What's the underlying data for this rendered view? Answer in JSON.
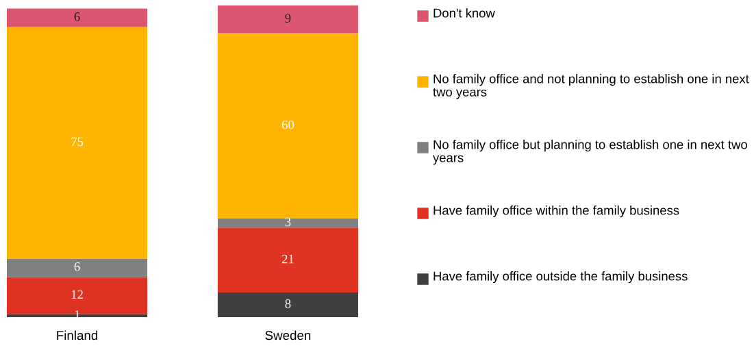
{
  "chart_data": {
    "type": "bar",
    "stacked": true,
    "data_labels": true,
    "legend": "right",
    "categories": [
      "Finland",
      "Sweden"
    ],
    "series": [
      {
        "name": "Have family office outside the family business",
        "color": "#404040",
        "values": [
          1,
          8
        ]
      },
      {
        "name": "Have family office within the family business",
        "color": "#e03222",
        "values": [
          12,
          21
        ]
      },
      {
        "name": "No family office but planning to establish one in next two years",
        "color": "#808080",
        "values": [
          6,
          3
        ]
      },
      {
        "name": "No family office and not planning to establish one in next two years",
        "color": "#ffb400",
        "values": [
          75,
          60
        ]
      },
      {
        "name": "Don't know",
        "color": "#dc5670",
        "values": [
          6,
          9
        ]
      }
    ]
  }
}
